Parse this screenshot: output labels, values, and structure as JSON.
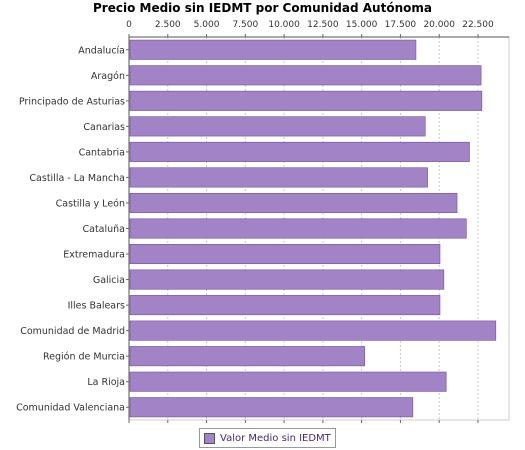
{
  "chart_data": {
    "type": "bar",
    "orientation": "horizontal",
    "title": "Precio Medio sin IEDMT por Comunidad Autónoma",
    "categories": [
      "Andalucía",
      "Aragón",
      "Principado de Asturias",
      "Canarias",
      "Cantabria",
      "Castilla - La Mancha",
      "Castilla y León",
      "Cataluña",
      "Extremadura",
      "Galicia",
      "Illes Balears",
      "Comunidad de Madrid",
      "Región de Murcia",
      "La Rioja",
      "Comunidad Valenciana"
    ],
    "series": [
      {
        "name": "Valor Medio sin IEDMT",
        "values": [
          18500,
          22700,
          22750,
          19100,
          21950,
          19250,
          21150,
          21750,
          20050,
          20300,
          20050,
          23650,
          15200,
          20450,
          18300
        ]
      }
    ],
    "xticks": [
      "0",
      "2.500",
      "5.000",
      "7.500",
      "10.000",
      "12.500",
      "15.000",
      "17.500",
      "20.000",
      "22.500"
    ],
    "xtick_values": [
      0,
      2500,
      5000,
      7500,
      10000,
      12500,
      15000,
      17500,
      20000,
      22500
    ],
    "xlim": [
      0,
      24500
    ],
    "xlabel": "",
    "ylabel": "",
    "grid": "vertical dashed",
    "legend_position": "bottom",
    "colors": {
      "bar": "#a284c6",
      "bar_edge": "#6f4f97",
      "legend_text": "#4a2a6a"
    }
  }
}
